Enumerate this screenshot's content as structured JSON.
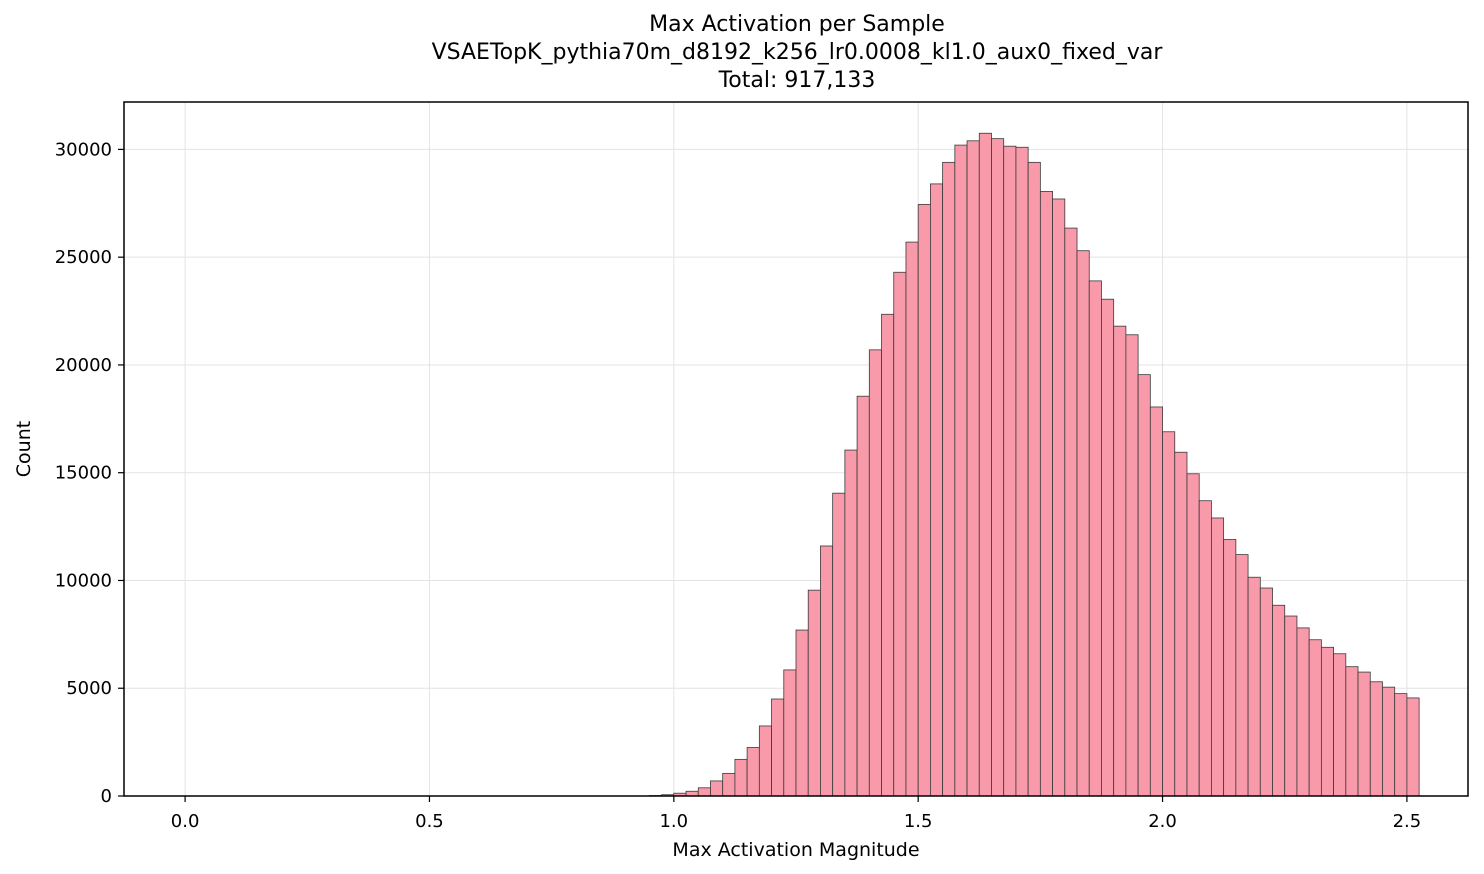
{
  "chart_data": {
    "type": "bar",
    "title_lines": [
      "Max Activation per Sample",
      "VSAETopK_pythia70m_d8192_k256_lr0.0008_kl1.0_aux0_fixed_var",
      "Total: 917,133"
    ],
    "xlabel": "Max Activation Magnitude",
    "ylabel": "Count",
    "xlim": [
      -0.125,
      2.625
    ],
    "ylim": [
      0,
      32200
    ],
    "xticks": [
      0.0,
      0.5,
      1.0,
      1.5,
      2.0,
      2.5
    ],
    "xtick_labels": [
      "0.0",
      "0.5",
      "1.0",
      "1.5",
      "2.0",
      "2.5"
    ],
    "yticks": [
      0,
      5000,
      10000,
      15000,
      20000,
      25000,
      30000
    ],
    "ytick_labels": [
      "0",
      "5000",
      "10000",
      "15000",
      "20000",
      "25000",
      "30000"
    ],
    "grid": true,
    "bar_color": "#f89aa9",
    "edge_color": "#3a3a3a",
    "bins": {
      "start": 0.0,
      "width": 0.025,
      "values": [
        0,
        0,
        0,
        0,
        0,
        0,
        0,
        0,
        0,
        0,
        0,
        0,
        0,
        0,
        0,
        0,
        0,
        0,
        0,
        0,
        0,
        0,
        0,
        0,
        0,
        0,
        0,
        0,
        0,
        0,
        0,
        0,
        0,
        0,
        0,
        0,
        0,
        0,
        20,
        60,
        130,
        220,
        380,
        700,
        1050,
        1700,
        2250,
        3250,
        4500,
        5850,
        7700,
        9550,
        11600,
        14050,
        16050,
        18550,
        20700,
        22350,
        24300,
        25700,
        27450,
        28400,
        29400,
        30200,
        30400,
        30750,
        30500,
        30150,
        30100,
        29400,
        28050,
        27700,
        26350,
        25300,
        23900,
        23050,
        21800,
        21400,
        19550,
        18050,
        16900,
        15950,
        14950,
        13700,
        12900,
        11900,
        11200,
        10150,
        9650,
        8850,
        8350,
        7800,
        7250,
        6900,
        6600,
        6000,
        5750,
        5300,
        5050,
        4750,
        4550
      ]
    }
  }
}
